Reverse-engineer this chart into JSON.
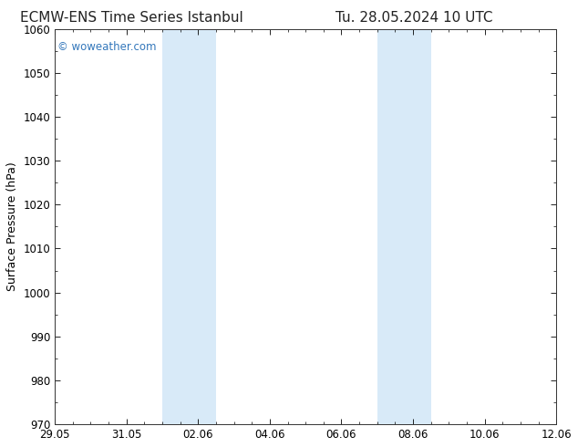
{
  "title_left": "ECMW-ENS Time Series Istanbul",
  "title_right": "Tu. 28.05.2024 10 UTC",
  "ylabel": "Surface Pressure (hPa)",
  "ylim": [
    970,
    1060
  ],
  "yticks": [
    970,
    980,
    990,
    1000,
    1010,
    1020,
    1030,
    1040,
    1050,
    1060
  ],
  "xtick_labels": [
    "29.05",
    "31.05",
    "02.06",
    "04.06",
    "06.06",
    "08.06",
    "10.06",
    "12.06"
  ],
  "xtick_positions_days": [
    0,
    2,
    4,
    6,
    8,
    10,
    12,
    14
  ],
  "shaded_bands": [
    {
      "x_start_days": 3.0,
      "x_end_days": 4.5
    },
    {
      "x_start_days": 9.0,
      "x_end_days": 10.5
    }
  ],
  "shaded_color": "#d8eaf8",
  "background_color": "#ffffff",
  "plot_bg_color": "#ffffff",
  "watermark_text": "© woweather.com",
  "watermark_color": "#3377bb",
  "title_fontsize": 11,
  "tick_fontsize": 8.5,
  "ylabel_fontsize": 9
}
